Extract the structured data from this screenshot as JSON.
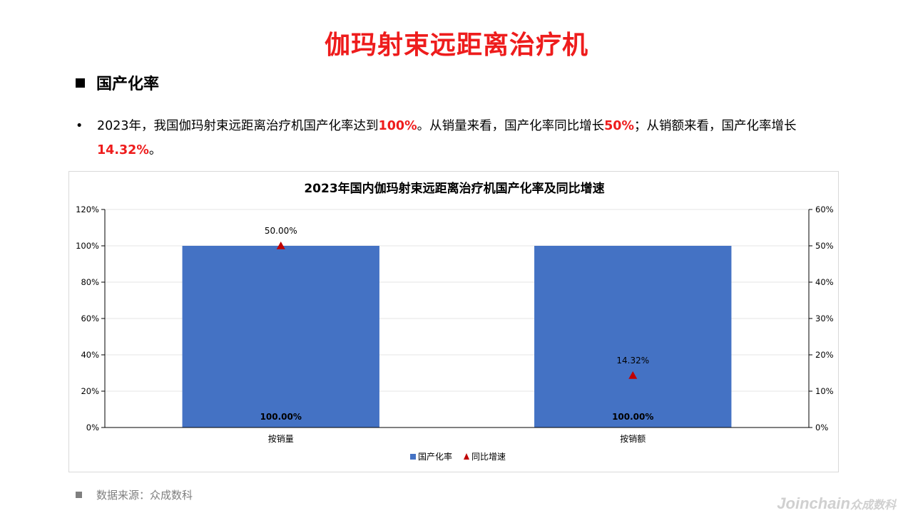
{
  "page": {
    "title": "伽玛射束远距离治疗机",
    "section_heading": "国产化率",
    "paragraph": {
      "bullet": "•",
      "segments": [
        {
          "text": "2023年，我国伽玛射束远距离治疗机国产化率达到",
          "highlight": false
        },
        {
          "text": "100%",
          "highlight": true
        },
        {
          "text": "。从销量来看，国产化率同比增长",
          "highlight": false
        },
        {
          "text": "50%",
          "highlight": true
        },
        {
          "text": "；从销额来看，国产化率增长",
          "highlight": false
        },
        {
          "text": "14.32%",
          "highlight": true
        },
        {
          "text": "。",
          "highlight": false
        }
      ]
    },
    "source": "数据来源：众成数科",
    "watermark": {
      "main": "Joinchain",
      "sub": "众成数科"
    }
  },
  "chart_data": {
    "type": "bar",
    "title": "2023年国内伽玛射束远距离治疗机国产化率及同比增速",
    "categories": [
      "按销量",
      "按销额"
    ],
    "series": [
      {
        "name": "国产化率",
        "type": "bar",
        "axis": "left",
        "color": "#4472c4",
        "values": [
          100,
          100
        ],
        "labels": [
          "100.00%",
          "100.00%"
        ]
      },
      {
        "name": "同比增速",
        "type": "scatter",
        "marker": "triangle",
        "axis": "right",
        "color": "#c00000",
        "values": [
          50,
          14.32
        ],
        "labels": [
          "50.00%",
          "14.32%"
        ]
      }
    ],
    "y_left": {
      "min": 0,
      "max": 120,
      "step": 20,
      "ticks": [
        "0%",
        "20%",
        "40%",
        "60%",
        "80%",
        "100%",
        "120%"
      ]
    },
    "y_right": {
      "min": 0,
      "max": 60,
      "step": 10,
      "ticks": [
        "0%",
        "10%",
        "20%",
        "30%",
        "40%",
        "50%",
        "60%"
      ]
    },
    "grid": true,
    "legend": "bottom"
  }
}
